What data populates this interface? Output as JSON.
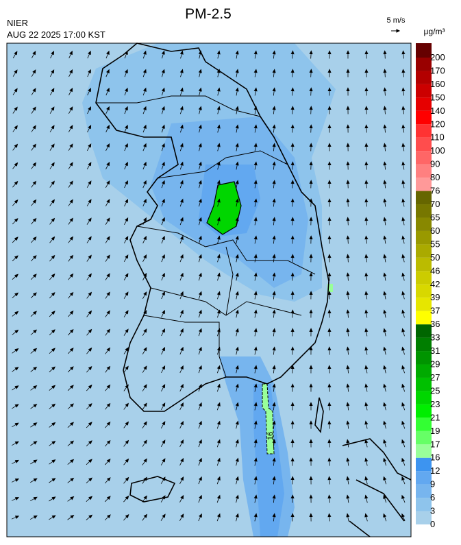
{
  "header": {
    "title": "PM-2.5",
    "agency": "NIER",
    "datetime": "AUG 22 2025 17:00 KST"
  },
  "wind_scale": {
    "label": "5 m/s"
  },
  "colorbar": {
    "unit": "μg/m³",
    "levels": [
      0,
      3,
      6,
      9,
      12,
      16,
      17,
      19,
      21,
      23,
      25,
      27,
      29,
      31,
      33,
      36,
      37,
      39,
      42,
      46,
      50,
      55,
      60,
      65,
      70,
      76,
      80,
      90,
      100,
      110,
      120,
      140,
      150,
      160,
      170,
      200
    ],
    "colors": [
      "#a8d0ea",
      "#8ec4ec",
      "#77b5ee",
      "#62a8f0",
      "#3d94f0",
      "#99ff99",
      "#66ff66",
      "#33ff33",
      "#00ee00",
      "#00d600",
      "#00c000",
      "#00aa00",
      "#009400",
      "#007e00",
      "#006600",
      "#ffff00",
      "#e6e600",
      "#d8d800",
      "#cccc00",
      "#bbbb00",
      "#aaaa00",
      "#999900",
      "#888800",
      "#777700",
      "#666600",
      "#ff9999",
      "#ff8080",
      "#ff6666",
      "#ff4d4d",
      "#ff3333",
      "#ff0000",
      "#e60000",
      "#cc0000",
      "#b30000",
      "#990000",
      "#660000"
    ]
  },
  "contour_labels": [
    "16"
  ]
}
